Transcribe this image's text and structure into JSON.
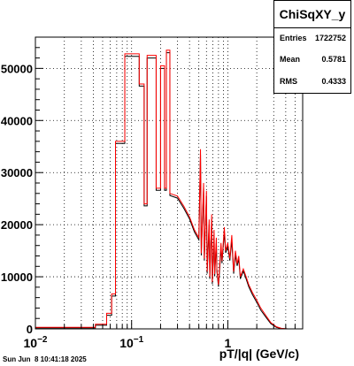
{
  "chart_data": {
    "type": "histogram-step",
    "title": "",
    "xlabel": "pT/|q| (GeV/c)",
    "ylabel": "",
    "xscale": "log",
    "xlim": [
      0.01,
      6
    ],
    "ylim": [
      0,
      56000
    ],
    "grid": true,
    "x_tick_labels": [
      {
        "value": 0.01,
        "base": "10",
        "exp": "−2"
      },
      {
        "value": 0.1,
        "base": "10",
        "exp": "−1"
      },
      {
        "value": 1,
        "base": "1",
        "exp": ""
      }
    ],
    "y_ticks": [
      0,
      10000,
      20000,
      30000,
      40000,
      50000
    ],
    "y_tick_labels": [
      "0",
      "10000",
      "20000",
      "30000",
      "40000",
      "50000"
    ],
    "series": [
      {
        "color": "#ff0000",
        "points": [
          [
            0.01,
            300
          ],
          [
            0.042,
            300
          ],
          [
            0.042,
            900
          ],
          [
            0.055,
            900
          ],
          [
            0.055,
            3000
          ],
          [
            0.062,
            3000
          ],
          [
            0.062,
            6700
          ],
          [
            0.068,
            6700
          ],
          [
            0.068,
            36000
          ],
          [
            0.085,
            36000
          ],
          [
            0.085,
            52800
          ],
          [
            0.12,
            52800
          ],
          [
            0.12,
            47000
          ],
          [
            0.135,
            47000
          ],
          [
            0.135,
            24000
          ],
          [
            0.145,
            24000
          ],
          [
            0.145,
            52500
          ],
          [
            0.18,
            52500
          ],
          [
            0.18,
            27000
          ],
          [
            0.2,
            27000
          ],
          [
            0.2,
            50500
          ],
          [
            0.22,
            50500
          ],
          [
            0.22,
            27000
          ],
          [
            0.23,
            27000
          ],
          [
            0.23,
            53500
          ],
          [
            0.25,
            53500
          ],
          [
            0.25,
            26000
          ],
          [
            0.3,
            25500
          ],
          [
            0.35,
            23500
          ],
          [
            0.4,
            21500
          ],
          [
            0.45,
            19000
          ],
          [
            0.5,
            17500
          ],
          [
            0.52,
            34500
          ],
          [
            0.53,
            14500
          ],
          [
            0.56,
            28000
          ],
          [
            0.57,
            13500
          ],
          [
            0.6,
            26500
          ],
          [
            0.61,
            11000
          ],
          [
            0.64,
            21000
          ],
          [
            0.65,
            10000
          ],
          [
            0.68,
            22000
          ],
          [
            0.69,
            9000
          ],
          [
            0.72,
            19000
          ],
          [
            0.73,
            10500
          ],
          [
            0.76,
            17500
          ],
          [
            0.77,
            11500
          ],
          [
            0.8,
            8500
          ],
          [
            0.85,
            16500
          ],
          [
            0.87,
            13000
          ],
          [
            0.92,
            19500
          ],
          [
            0.95,
            15000
          ],
          [
            1.0,
            16500
          ],
          [
            1.05,
            13500
          ],
          [
            1.1,
            18000
          ],
          [
            1.15,
            11000
          ],
          [
            1.2,
            15000
          ],
          [
            1.25,
            12500
          ],
          [
            1.3,
            14000
          ],
          [
            1.35,
            10000
          ],
          [
            1.45,
            11500
          ],
          [
            1.55,
            10000
          ],
          [
            1.65,
            8500
          ],
          [
            1.8,
            7000
          ],
          [
            2.0,
            5500
          ],
          [
            2.2,
            4000
          ],
          [
            2.5,
            2500
          ],
          [
            2.8,
            1200
          ],
          [
            3.2,
            400
          ],
          [
            3.6,
            100
          ],
          [
            4.2,
            0
          ],
          [
            6,
            0
          ]
        ]
      },
      {
        "color": "#000000",
        "points": [
          [
            0.01,
            200
          ],
          [
            0.042,
            200
          ],
          [
            0.042,
            700
          ],
          [
            0.055,
            700
          ],
          [
            0.055,
            2600
          ],
          [
            0.062,
            2600
          ],
          [
            0.062,
            6300
          ],
          [
            0.068,
            6300
          ],
          [
            0.068,
            35600
          ],
          [
            0.085,
            35600
          ],
          [
            0.085,
            52300
          ],
          [
            0.12,
            52300
          ],
          [
            0.12,
            46600
          ],
          [
            0.135,
            46600
          ],
          [
            0.135,
            23600
          ],
          [
            0.145,
            23600
          ],
          [
            0.145,
            52000
          ],
          [
            0.18,
            52000
          ],
          [
            0.18,
            26600
          ],
          [
            0.2,
            26600
          ],
          [
            0.2,
            50000
          ],
          [
            0.22,
            50000
          ],
          [
            0.22,
            26600
          ],
          [
            0.23,
            26600
          ],
          [
            0.23,
            53000
          ],
          [
            0.25,
            53000
          ],
          [
            0.25,
            25600
          ],
          [
            0.3,
            25100
          ],
          [
            0.35,
            23100
          ],
          [
            0.4,
            21100
          ],
          [
            0.45,
            18600
          ],
          [
            0.5,
            17100
          ],
          [
            0.52,
            33500
          ],
          [
            0.53,
            14100
          ],
          [
            0.56,
            27000
          ],
          [
            0.57,
            13100
          ],
          [
            0.6,
            25500
          ],
          [
            0.61,
            10600
          ],
          [
            0.64,
            20000
          ],
          [
            0.65,
            9600
          ],
          [
            0.68,
            21000
          ],
          [
            0.69,
            8600
          ],
          [
            0.72,
            18000
          ],
          [
            0.73,
            10100
          ],
          [
            0.76,
            16500
          ],
          [
            0.77,
            11100
          ],
          [
            0.8,
            8100
          ],
          [
            0.85,
            15500
          ],
          [
            0.87,
            12600
          ],
          [
            0.92,
            18500
          ],
          [
            0.95,
            14600
          ],
          [
            1.0,
            15800
          ],
          [
            1.05,
            13100
          ],
          [
            1.1,
            17000
          ],
          [
            1.15,
            10600
          ],
          [
            1.2,
            14200
          ],
          [
            1.25,
            12100
          ],
          [
            1.3,
            13400
          ],
          [
            1.35,
            9600
          ],
          [
            1.45,
            11100
          ],
          [
            1.55,
            9600
          ],
          [
            1.65,
            8100
          ],
          [
            1.8,
            6600
          ],
          [
            2.0,
            5100
          ],
          [
            2.2,
            3600
          ],
          [
            2.5,
            2200
          ],
          [
            2.8,
            1000
          ],
          [
            3.2,
            300
          ],
          [
            3.6,
            60
          ],
          [
            4.2,
            0
          ],
          [
            6,
            0
          ]
        ]
      }
    ]
  },
  "stats": {
    "title": "ChiSqXY_y",
    "rows": [
      {
        "key": "Entries",
        "value": "1722752"
      },
      {
        "key": "Mean",
        "value": "0.5781"
      },
      {
        "key": "RMS",
        "value": "0.4333"
      }
    ]
  },
  "timestamp": "Sun Jun  8 10:41:18 2025"
}
